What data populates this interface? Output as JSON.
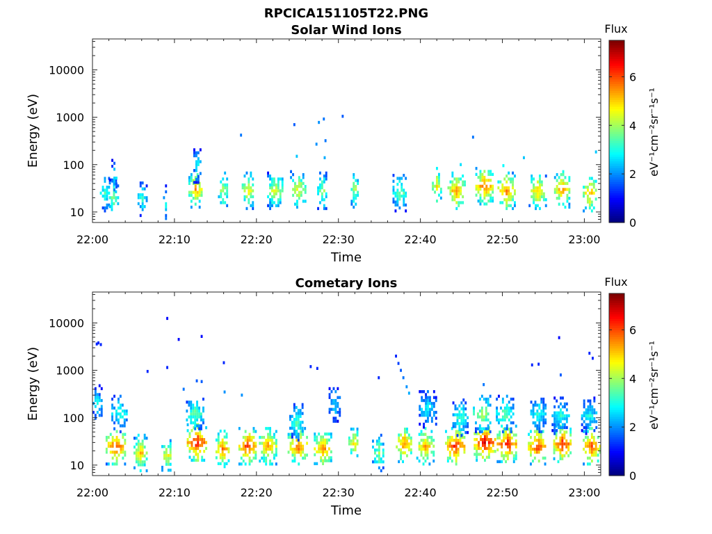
{
  "figure": {
    "title": "RPCICA151105T22.PNG"
  },
  "chart_data": [
    {
      "type": "heatmap",
      "title": "Solar Wind Ions",
      "xlabel": "Time",
      "ylabel": "Energy (eV)",
      "xticks": [
        "22:00",
        "22:10",
        "22:20",
        "22:30",
        "22:40",
        "22:50",
        "23:00"
      ],
      "xlim_minutes": [
        0,
        62
      ],
      "yscale": "log",
      "yticks": [
        10,
        100,
        1000,
        10000
      ],
      "ytick_labels": [
        "10",
        "100",
        "1000",
        "10000"
      ],
      "ylim": [
        6,
        45000
      ],
      "colorbar": {
        "label": "Flux",
        "unit_label": "eV⁻¹cm⁻²sr⁻¹s⁻¹",
        "range": [
          0,
          7.5
        ],
        "ticks": [
          "0",
          "2",
          "4",
          "6"
        ],
        "colormap": "jet"
      },
      "clusters": [
        {
          "t": 1.5,
          "e": 25,
          "flux": 3.4,
          "spread": 0.6
        },
        {
          "t": 2.5,
          "e": 20,
          "flux": 4.0,
          "spread": 0.5
        },
        {
          "t": 2.6,
          "e": 60,
          "flux": 3.0,
          "spread": 0.3
        },
        {
          "t": 6.0,
          "e": 20,
          "flux": 3.2,
          "spread": 0.5
        },
        {
          "t": 8.8,
          "e": 15,
          "flux": 3.0,
          "spread": 0.2
        },
        {
          "t": 12.5,
          "e": 30,
          "flux": 5.5,
          "spread": 0.8
        },
        {
          "t": 12.7,
          "e": 100,
          "flux": 2.8,
          "spread": 0.4
        },
        {
          "t": 15.9,
          "e": 28,
          "flux": 4.2,
          "spread": 0.6
        },
        {
          "t": 18.9,
          "e": 28,
          "flux": 4.8,
          "spread": 0.7
        },
        {
          "t": 22.2,
          "e": 28,
          "flux": 4.6,
          "spread": 0.9
        },
        {
          "t": 25.0,
          "e": 30,
          "flux": 4.8,
          "spread": 0.9
        },
        {
          "t": 28.0,
          "e": 28,
          "flux": 4.0,
          "spread": 0.6
        },
        {
          "t": 31.9,
          "e": 30,
          "flux": 4.3,
          "spread": 0.4
        },
        {
          "t": 37.4,
          "e": 25,
          "flux": 3.8,
          "spread": 0.8
        },
        {
          "t": 41.9,
          "e": 35,
          "flux": 4.8,
          "spread": 0.5
        },
        {
          "t": 44.3,
          "e": 28,
          "flux": 5.6,
          "spread": 1.0
        },
        {
          "t": 47.8,
          "e": 35,
          "flux": 6.0,
          "spread": 1.1
        },
        {
          "t": 50.4,
          "e": 28,
          "flux": 5.8,
          "spread": 1.0
        },
        {
          "t": 54.2,
          "e": 28,
          "flux": 5.2,
          "spread": 1.0
        },
        {
          "t": 57.2,
          "e": 30,
          "flux": 5.6,
          "spread": 0.9
        },
        {
          "t": 60.6,
          "e": 25,
          "flux": 5.4,
          "spread": 0.8
        }
      ],
      "sparse": [
        {
          "t": 18.0,
          "e": 420,
          "flux": 1.8
        },
        {
          "t": 24.5,
          "e": 700,
          "flux": 1.6
        },
        {
          "t": 27.2,
          "e": 270,
          "flux": 2.0
        },
        {
          "t": 27.5,
          "e": 780,
          "flux": 2.0
        },
        {
          "t": 28.1,
          "e": 920,
          "flux": 1.8
        },
        {
          "t": 28.3,
          "e": 320,
          "flux": 1.8
        },
        {
          "t": 30.4,
          "e": 1050,
          "flux": 1.6
        },
        {
          "t": 24.8,
          "e": 150,
          "flux": 2.4
        },
        {
          "t": 28.2,
          "e": 140,
          "flux": 2.2
        },
        {
          "t": 46.3,
          "e": 380,
          "flux": 1.8
        },
        {
          "t": 52.5,
          "e": 140,
          "flux": 2.4
        },
        {
          "t": 61.3,
          "e": 185,
          "flux": 2.4
        },
        {
          "t": 44.8,
          "e": 100,
          "flux": 2.6
        },
        {
          "t": 50.0,
          "e": 95,
          "flux": 2.8
        }
      ]
    },
    {
      "type": "heatmap",
      "title": "Cometary Ions",
      "xlabel": "Time",
      "ylabel": "Energy (eV)",
      "xticks": [
        "22:00",
        "22:10",
        "22:20",
        "22:30",
        "22:40",
        "22:50",
        "23:00"
      ],
      "xlim_minutes": [
        0,
        62
      ],
      "yscale": "log",
      "yticks": [
        10,
        100,
        1000,
        10000
      ],
      "ytick_labels": [
        "10",
        "100",
        "1000",
        "10000"
      ],
      "ylim": [
        6,
        45000
      ],
      "colorbar": {
        "label": "Flux",
        "unit_label": "eV⁻¹cm⁻²sr⁻¹s⁻¹",
        "range": [
          0,
          7.5
        ],
        "ticks": [
          "0",
          "2",
          "4",
          "6"
        ],
        "colormap": "jet"
      },
      "clusters": [
        {
          "t": 0.5,
          "e": 200,
          "flux": 2.8,
          "spread": 0.5
        },
        {
          "t": 2.8,
          "e": 25,
          "flux": 6.2,
          "spread": 1.2
        },
        {
          "t": 3.2,
          "e": 120,
          "flux": 3.2,
          "spread": 0.9
        },
        {
          "t": 5.8,
          "e": 18,
          "flux": 5.2,
          "spread": 0.8
        },
        {
          "t": 9.0,
          "e": 16,
          "flux": 4.8,
          "spread": 0.6
        },
        {
          "t": 12.7,
          "e": 30,
          "flux": 6.8,
          "spread": 1.2
        },
        {
          "t": 12.4,
          "e": 120,
          "flux": 3.6,
          "spread": 1.0
        },
        {
          "t": 15.8,
          "e": 22,
          "flux": 5.8,
          "spread": 0.8
        },
        {
          "t": 18.9,
          "e": 25,
          "flux": 6.4,
          "spread": 1.1
        },
        {
          "t": 21.3,
          "e": 25,
          "flux": 5.6,
          "spread": 1.0
        },
        {
          "t": 25.0,
          "e": 25,
          "flux": 6.0,
          "spread": 1.2
        },
        {
          "t": 24.8,
          "e": 80,
          "flux": 3.4,
          "spread": 0.8
        },
        {
          "t": 28.0,
          "e": 22,
          "flux": 5.8,
          "spread": 1.0
        },
        {
          "t": 29.5,
          "e": 200,
          "flux": 2.6,
          "spread": 0.7
        },
        {
          "t": 31.8,
          "e": 28,
          "flux": 5.0,
          "spread": 0.6
        },
        {
          "t": 34.8,
          "e": 18,
          "flux": 4.0,
          "spread": 0.7
        },
        {
          "t": 37.9,
          "e": 28,
          "flux": 5.8,
          "spread": 0.9
        },
        {
          "t": 40.5,
          "e": 25,
          "flux": 5.4,
          "spread": 1.0
        },
        {
          "t": 40.8,
          "e": 150,
          "flux": 2.8,
          "spread": 1.0
        },
        {
          "t": 44.2,
          "e": 25,
          "flux": 6.5,
          "spread": 1.2
        },
        {
          "t": 44.8,
          "e": 100,
          "flux": 3.4,
          "spread": 0.9
        },
        {
          "t": 47.8,
          "e": 30,
          "flux": 7.0,
          "spread": 1.3
        },
        {
          "t": 47.5,
          "e": 120,
          "flux": 4.2,
          "spread": 1.1
        },
        {
          "t": 50.5,
          "e": 28,
          "flux": 6.6,
          "spread": 1.2
        },
        {
          "t": 50.2,
          "e": 120,
          "flux": 3.6,
          "spread": 1.0
        },
        {
          "t": 54.2,
          "e": 25,
          "flux": 6.4,
          "spread": 1.1
        },
        {
          "t": 54.3,
          "e": 120,
          "flux": 3.2,
          "spread": 0.9
        },
        {
          "t": 57.3,
          "e": 28,
          "flux": 6.6,
          "spread": 1.1
        },
        {
          "t": 57.0,
          "e": 110,
          "flux": 3.2,
          "spread": 1.0
        },
        {
          "t": 60.8,
          "e": 25,
          "flux": 6.2,
          "spread": 1.0
        },
        {
          "t": 60.5,
          "e": 110,
          "flux": 3.0,
          "spread": 0.9
        }
      ],
      "sparse": [
        {
          "t": 0.6,
          "e": 3800,
          "flux": 1.2
        },
        {
          "t": 0.9,
          "e": 3500,
          "flux": 1.2
        },
        {
          "t": 0.4,
          "e": 3600,
          "flux": 1.2
        },
        {
          "t": 9.0,
          "e": 12500,
          "flux": 1.0
        },
        {
          "t": 10.4,
          "e": 4500,
          "flux": 1.0
        },
        {
          "t": 13.2,
          "e": 5200,
          "flux": 1.0
        },
        {
          "t": 6.6,
          "e": 950,
          "flux": 1.2
        },
        {
          "t": 9.0,
          "e": 1150,
          "flux": 1.2
        },
        {
          "t": 15.9,
          "e": 1450,
          "flux": 1.2
        },
        {
          "t": 26.5,
          "e": 1200,
          "flux": 1.2
        },
        {
          "t": 27.3,
          "e": 1100,
          "flux": 1.2
        },
        {
          "t": 34.8,
          "e": 700,
          "flux": 1.2
        },
        {
          "t": 36.9,
          "e": 2000,
          "flux": 1.2
        },
        {
          "t": 37.2,
          "e": 1400,
          "flux": 1.4
        },
        {
          "t": 37.5,
          "e": 1000,
          "flux": 1.6
        },
        {
          "t": 37.8,
          "e": 700,
          "flux": 1.8
        },
        {
          "t": 38.2,
          "e": 450,
          "flux": 2.0
        },
        {
          "t": 38.5,
          "e": 330,
          "flux": 2.2
        },
        {
          "t": 47.6,
          "e": 500,
          "flux": 1.8
        },
        {
          "t": 53.5,
          "e": 1300,
          "flux": 1.2
        },
        {
          "t": 54.3,
          "e": 1350,
          "flux": 1.2
        },
        {
          "t": 56.8,
          "e": 4900,
          "flux": 1.0
        },
        {
          "t": 60.5,
          "e": 2300,
          "flux": 1.2
        },
        {
          "t": 60.9,
          "e": 1800,
          "flux": 1.2
        },
        {
          "t": 57.0,
          "e": 800,
          "flux": 1.6
        },
        {
          "t": 11.0,
          "e": 400,
          "flux": 1.8
        },
        {
          "t": 12.6,
          "e": 600,
          "flux": 1.6
        },
        {
          "t": 13.2,
          "e": 580,
          "flux": 1.6
        },
        {
          "t": 16.0,
          "e": 350,
          "flux": 2.0
        },
        {
          "t": 18.1,
          "e": 300,
          "flux": 2.0
        }
      ]
    }
  ]
}
